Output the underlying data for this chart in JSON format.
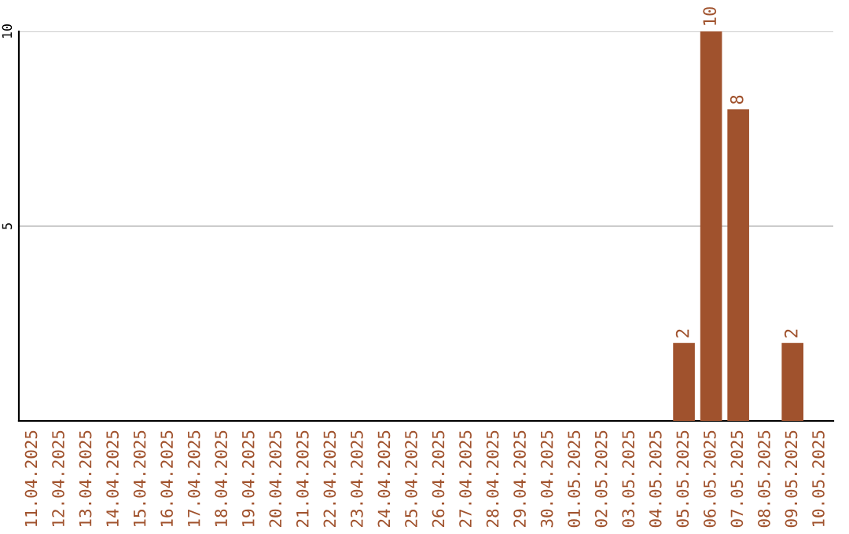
{
  "chart_data": {
    "type": "bar",
    "categories": [
      "11.04.2025",
      "12.04.2025",
      "13.04.2025",
      "14.04.2025",
      "15.04.2025",
      "16.04.2025",
      "17.04.2025",
      "18.04.2025",
      "19.04.2025",
      "20.04.2025",
      "21.04.2025",
      "22.04.2025",
      "23.04.2025",
      "24.04.2025",
      "25.04.2025",
      "26.04.2025",
      "27.04.2025",
      "28.04.2025",
      "29.04.2025",
      "30.04.2025",
      "01.05.2025",
      "02.05.2025",
      "03.05.2025",
      "04.05.2025",
      "05.05.2025",
      "06.05.2025",
      "07.05.2025",
      "08.05.2025",
      "09.05.2025",
      "10.05.2025"
    ],
    "values": [
      0,
      0,
      0,
      0,
      0,
      0,
      0,
      0,
      0,
      0,
      0,
      0,
      0,
      0,
      0,
      0,
      0,
      0,
      0,
      0,
      0,
      0,
      0,
      0,
      2,
      10,
      8,
      0,
      2,
      0
    ],
    "value_labels": [
      null,
      null,
      null,
      null,
      null,
      null,
      null,
      null,
      null,
      null,
      null,
      null,
      null,
      null,
      null,
      null,
      null,
      null,
      null,
      null,
      null,
      null,
      null,
      null,
      "2",
      "10",
      "8",
      null,
      "2",
      null
    ],
    "color": "#a0522d",
    "ylim": [
      0,
      10
    ],
    "yticks": [
      5,
      10
    ],
    "grid": "y"
  }
}
